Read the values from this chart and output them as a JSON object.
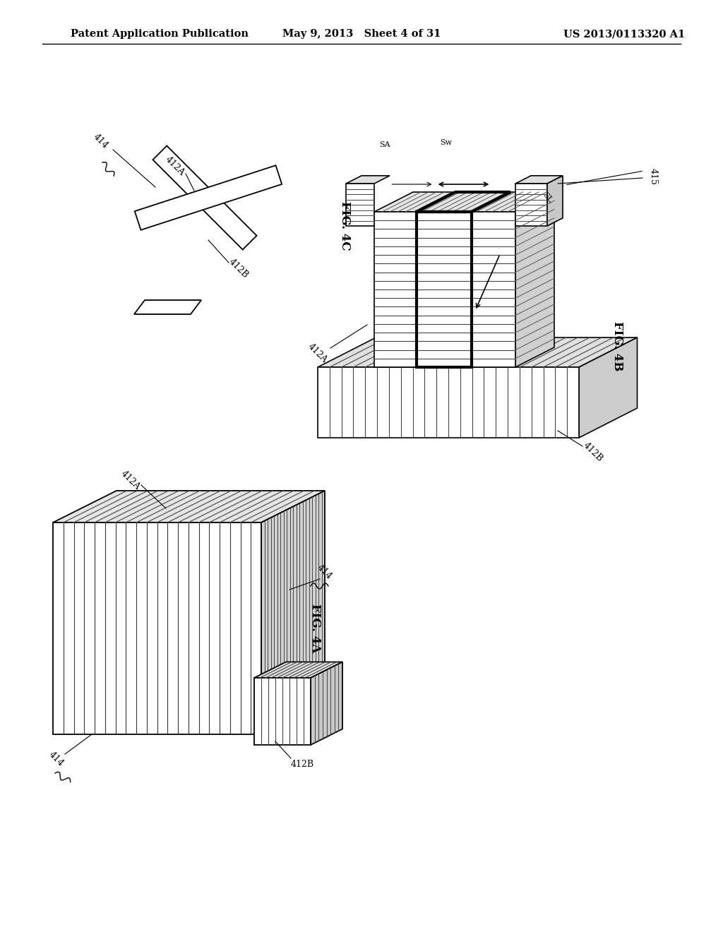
{
  "bg_color": "#ffffff",
  "header_left": "Patent Application Publication",
  "header_center": "May 9, 2013   Sheet 4 of 31",
  "header_right": "US 2013/0113320 A1"
}
